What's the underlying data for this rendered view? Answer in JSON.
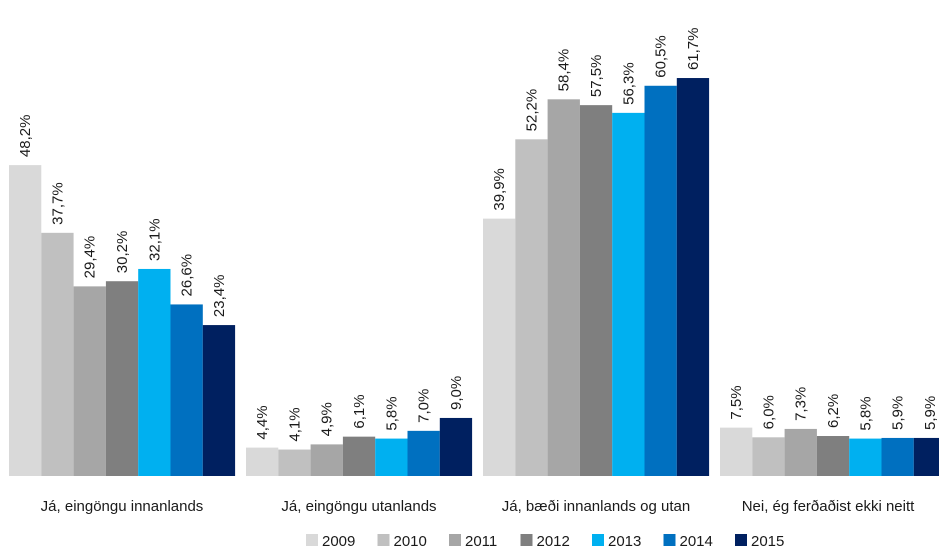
{
  "chart_data": {
    "type": "bar",
    "title": "",
    "xlabel": "",
    "ylabel": "",
    "ylim": [
      0,
      65
    ],
    "grid": false,
    "legend_position": "bottom",
    "categories": [
      "Já, eingöngu innanlands",
      "Já, eingöngu utanlands",
      "Já, bæði innanlands og utan",
      "Nei, ég ferðaðist ekki neitt"
    ],
    "series": [
      {
        "name": "2009",
        "color": "#d9d9d9",
        "values": [
          48.2,
          4.4,
          39.9,
          7.5
        ],
        "labels": [
          "48,2%",
          "4,4%",
          "39,9%",
          "7,5%"
        ]
      },
      {
        "name": "2010",
        "color": "#c0c0c0",
        "values": [
          37.7,
          4.1,
          52.2,
          6.0
        ],
        "labels": [
          "37,7%",
          "4,1%",
          "52,2%",
          "6,0%"
        ]
      },
      {
        "name": "2011",
        "color": "#a6a6a6",
        "values": [
          29.4,
          4.9,
          58.4,
          7.3
        ],
        "labels": [
          "29,4%",
          "4,9%",
          "58,4%",
          "7,3%"
        ]
      },
      {
        "name": "2012",
        "color": "#7f7f7f",
        "values": [
          30.2,
          6.1,
          57.5,
          6.2
        ],
        "labels": [
          "30,2%",
          "6,1%",
          "57,5%",
          "6,2%"
        ]
      },
      {
        "name": "2013",
        "color": "#00b0f0",
        "values": [
          32.1,
          5.8,
          56.3,
          5.8
        ],
        "labels": [
          "32,1%",
          "5,8%",
          "56,3%",
          "5,8%"
        ]
      },
      {
        "name": "2014",
        "color": "#0070c0",
        "values": [
          26.6,
          7.0,
          60.5,
          5.9
        ],
        "labels": [
          "26,6%",
          "7,0%",
          "60,5%",
          "5,9%"
        ]
      },
      {
        "name": "2015",
        "color": "#002060",
        "values": [
          23.4,
          9.0,
          61.7,
          5.9
        ],
        "labels": [
          "23,4%",
          "9,0%",
          "61,7%",
          "5,9%"
        ]
      }
    ]
  }
}
